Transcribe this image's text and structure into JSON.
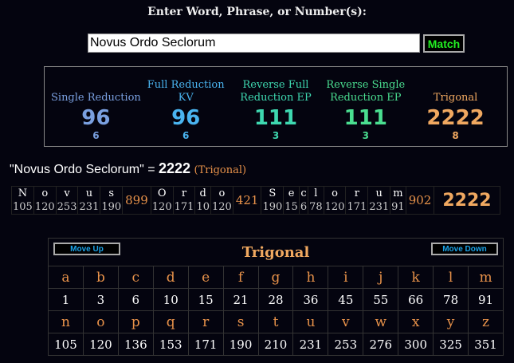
{
  "header": {
    "title": "Enter Word, Phrase, or Number(s):",
    "input_value": "Novus Ordo Seclorum",
    "match_label": "Match"
  },
  "ciphers": [
    {
      "name": "Single Reduction",
      "value": "96",
      "reduced": "6",
      "color": "#7aa0e0"
    },
    {
      "name": "Full Reduction KV",
      "value": "96",
      "reduced": "6",
      "color": "#4ab4f0"
    },
    {
      "name": "Reverse Full Reduction EP",
      "value": "111",
      "reduced": "3",
      "color": "#3ed8b0"
    },
    {
      "name": "Reverse Single Reduction EP",
      "value": "111",
      "reduced": "3",
      "color": "#4ade90"
    },
    {
      "name": "Trigonal",
      "value": "2222",
      "reduced": "8",
      "color": "#f0a860"
    }
  ],
  "summary": {
    "phrase": "\"Novus Ordo Seclorum\" =",
    "value": "2222",
    "cipher": "(Trigonal)"
  },
  "breakdown": {
    "words": [
      {
        "letters": [
          "N",
          "o",
          "v",
          "u",
          "s"
        ],
        "values": [
          "105",
          "120",
          "253",
          "231",
          "190"
        ],
        "total": "899"
      },
      {
        "letters": [
          "O",
          "r",
          "d",
          "o"
        ],
        "values": [
          "120",
          "171",
          "10",
          "120"
        ],
        "total": "421"
      },
      {
        "letters": [
          "S",
          "e",
          "c",
          "l",
          "o",
          "r",
          "u",
          "m"
        ],
        "values": [
          "190",
          "15",
          "6",
          "78",
          "120",
          "171",
          "231",
          "91"
        ],
        "total": "902"
      }
    ],
    "total": "2222"
  },
  "table": {
    "title": "Trigonal",
    "move_up": "Move Up",
    "move_down": "Move Down",
    "rows": [
      {
        "letters": [
          "a",
          "b",
          "c",
          "d",
          "e",
          "f",
          "g",
          "h",
          "i",
          "j",
          "k",
          "l",
          "m"
        ],
        "values": [
          "1",
          "3",
          "6",
          "10",
          "15",
          "21",
          "28",
          "36",
          "45",
          "55",
          "66",
          "78",
          "91"
        ]
      },
      {
        "letters": [
          "n",
          "o",
          "p",
          "q",
          "r",
          "s",
          "t",
          "u",
          "v",
          "w",
          "x",
          "y",
          "z"
        ],
        "values": [
          "105",
          "120",
          "136",
          "153",
          "171",
          "190",
          "210",
          "231",
          "253",
          "276",
          "300",
          "325",
          "351"
        ]
      }
    ]
  }
}
